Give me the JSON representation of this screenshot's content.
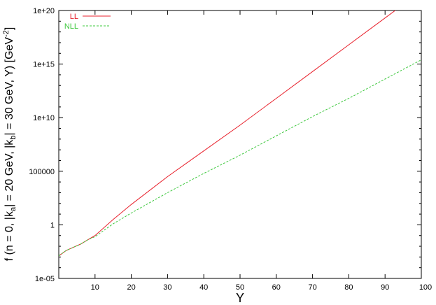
{
  "chart_data": {
    "type": "line",
    "xlabel": "Y",
    "ylabel": {
      "prefix": "f (n = 0, |k",
      "sub_a": "a",
      "mid1": "| = 20 GeV, |k",
      "sub_b": "b",
      "mid2": "| = 30 GeV, Y) [GeV",
      "sup": "-2",
      "suffix": "]"
    },
    "xlim": [
      0,
      100
    ],
    "ylim_log10": [
      -5,
      20
    ],
    "yscale": "log",
    "grid": false,
    "legend_position": "top-left",
    "x_ticks": [
      {
        "value": 10,
        "label": "10"
      },
      {
        "value": 20,
        "label": "20"
      },
      {
        "value": 30,
        "label": "30"
      },
      {
        "value": 40,
        "label": "40"
      },
      {
        "value": 50,
        "label": "50"
      },
      {
        "value": 60,
        "label": "60"
      },
      {
        "value": 70,
        "label": "70"
      },
      {
        "value": 80,
        "label": "80"
      },
      {
        "value": 90,
        "label": "90"
      },
      {
        "value": 100,
        "label": "100"
      }
    ],
    "y_ticks": [
      {
        "log10": -5,
        "label": "1e-05"
      },
      {
        "log10": 0,
        "label": "1"
      },
      {
        "log10": 5,
        "label": "100000"
      },
      {
        "log10": 10,
        "label": "1e+10"
      },
      {
        "log10": 15,
        "label": "1e+15"
      },
      {
        "log10": 20,
        "label": "1e+20"
      }
    ],
    "series": [
      {
        "name": "LL",
        "color": "#e8212c",
        "dash": "solid",
        "x": [
          0,
          2,
          4,
          6,
          8,
          10,
          15,
          20,
          30,
          40,
          50,
          60,
          70,
          80,
          90,
          100
        ],
        "log10_y": [
          -2.9,
          -2.4,
          -2.1,
          -1.8,
          -1.4,
          -1.0,
          0.5,
          1.9,
          4.5,
          6.9,
          9.3,
          11.8,
          14.3,
          16.8,
          19.3,
          21.8
        ]
      },
      {
        "name": "NLL",
        "color": "#3ec83e",
        "dash": "dashed",
        "x": [
          0,
          2,
          4,
          6,
          8,
          10,
          15,
          20,
          30,
          40,
          50,
          60,
          70,
          80,
          90,
          100
        ],
        "log10_y": [
          -2.9,
          -2.4,
          -2.1,
          -1.8,
          -1.4,
          -1.1,
          0.1,
          1.1,
          3.0,
          4.8,
          6.5,
          8.3,
          10.1,
          11.8,
          13.6,
          15.4
        ]
      }
    ]
  }
}
